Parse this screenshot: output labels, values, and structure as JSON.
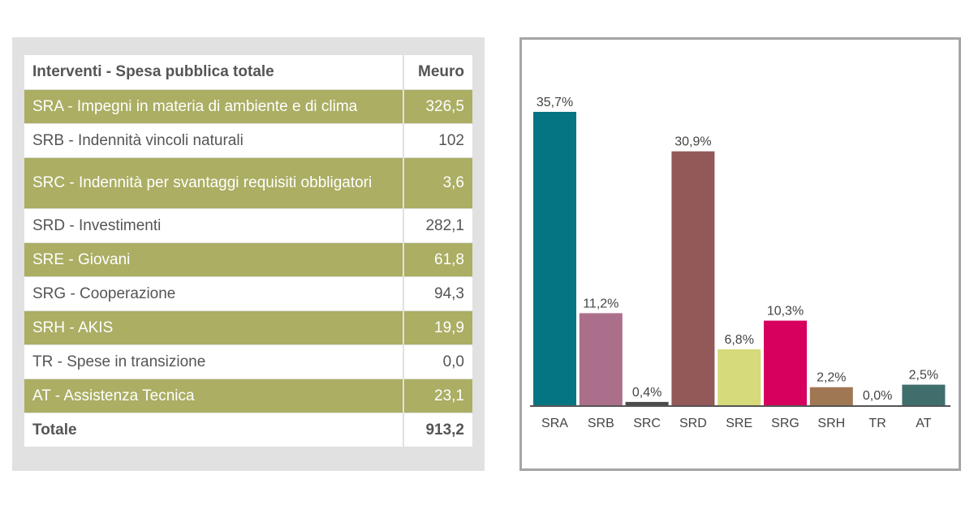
{
  "table": {
    "header": {
      "label": "Interventi - Spesa pubblica totale",
      "unit": "Meuro"
    },
    "rows": [
      {
        "label": "SRA - Impegni in materia di ambiente e di clima",
        "value": "326,5"
      },
      {
        "label": "SRB - Indennità vincoli naturali",
        "value": "102"
      },
      {
        "label": "SRC - Indennità per svantaggi requisiti obbligatori",
        "value": "3,6"
      },
      {
        "label": "SRD - Investimenti",
        "value": "282,1"
      },
      {
        "label": "SRE - Giovani",
        "value": "61,8"
      },
      {
        "label": "SRG - Cooperazione",
        "value": "94,3"
      },
      {
        "label": "SRH - AKIS",
        "value": "19,9"
      },
      {
        "label": "TR - Spese in transizione",
        "value": "0,0"
      },
      {
        "label": "AT - Assistenza Tecnica",
        "value": "23,1"
      }
    ],
    "total": {
      "label": "Totale",
      "value": "913,2"
    },
    "colors": {
      "band": "#abae63",
      "panel": "#e1e1e1"
    }
  },
  "chart_data": {
    "type": "bar",
    "categories": [
      "SRA",
      "SRB",
      "SRC",
      "SRD",
      "SRE",
      "SRG",
      "SRH",
      "TR",
      "AT"
    ],
    "values": [
      35.7,
      11.2,
      0.4,
      30.9,
      6.8,
      10.3,
      2.2,
      0.0,
      2.5
    ],
    "data_labels": [
      "35,7%",
      "11,2%",
      "0,4%",
      "30,9%",
      "6,8%",
      "10,3%",
      "2,2%",
      "0,0%",
      "2,5%"
    ],
    "colors": [
      "#057583",
      "#ac6f8b",
      "#4b4b4b",
      "#935959",
      "#d6da7a",
      "#d7005e",
      "#a07753",
      "#9b9b9b",
      "#3f6e6c"
    ],
    "title": "",
    "xlabel": "",
    "ylabel": "",
    "ylim": [
      0,
      35.7
    ],
    "grid": false,
    "legend": "none"
  }
}
